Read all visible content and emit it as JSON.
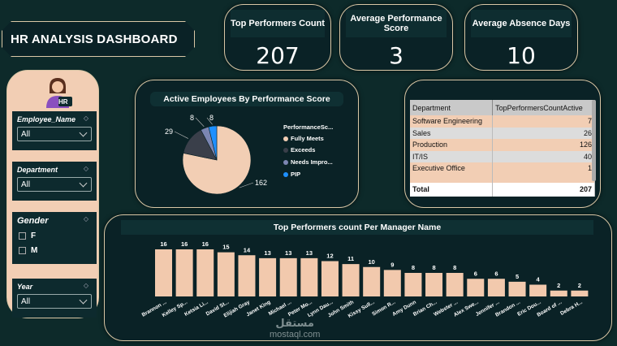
{
  "title": "HR ANALYSIS DASHBOARD",
  "kpis": [
    {
      "label": "Top Performers Count",
      "value": "207"
    },
    {
      "label": "Average Performance Score",
      "value": "3"
    },
    {
      "label": "Average Absence Days",
      "value": "10"
    }
  ],
  "sidebar": {
    "avatar_badge": "HR",
    "employee_name": {
      "label": "Employee_Name",
      "value": "All"
    },
    "department": {
      "label": "Department",
      "value": "All"
    },
    "gender": {
      "label": "Gender",
      "options": [
        "F",
        "M"
      ]
    },
    "year": {
      "label": "Year",
      "value": "All"
    }
  },
  "pie": {
    "title": "Active Employees By Performance Score",
    "legend_title": "PerformanceSc...",
    "legend": [
      "Fully Meets",
      "Exceeds",
      "Needs Impro...",
      "PIP"
    ],
    "colors": [
      "#f2ceb4",
      "#3a3f4a",
      "#7c86b2",
      "#1e90ff"
    ]
  },
  "table": {
    "headers": [
      "Department",
      "TopPerformersCountActive"
    ],
    "rows": [
      {
        "dept": "Software Engineering",
        "count": "7"
      },
      {
        "dept": "Sales",
        "count": "26"
      },
      {
        "dept": "Production",
        "count": "126"
      },
      {
        "dept": "IT/IS",
        "count": "40"
      },
      {
        "dept": "Executive Office",
        "count": "1"
      }
    ],
    "total_label": "Total",
    "total_value": "207"
  },
  "bar": {
    "title": "Top Performers count Per Manager Name"
  },
  "watermark": {
    "line1": "مستقل",
    "line2": "mostaql.com"
  },
  "chart_data": [
    {
      "type": "pie",
      "title": "Active Employees By Performance Score",
      "legend_title": "PerformanceSc...",
      "categories": [
        "Fully Meets",
        "Exceeds",
        "Needs Impro...",
        "PIP"
      ],
      "values": [
        162,
        29,
        8,
        8
      ],
      "labels": [
        "162",
        "29",
        "8",
        "8"
      ],
      "legend_position": "right"
    },
    {
      "type": "bar",
      "title": "Top Performers count Per Manager Name",
      "categories": [
        "Brannon ...",
        "Kelley Sp...",
        "Ketsia Li...",
        "David St...",
        "Elijiah Gray",
        "Janet King",
        "Michael ...",
        "Peter Mo...",
        "Lynn Dau...",
        "John Smith",
        "Kissy Sull...",
        "Simon R...",
        "Amy Dunn",
        "Brian Ch...",
        "Webster ...",
        "Alex Swe...",
        "Jennifer ...",
        "Brandon ...",
        "Eric Dou...",
        "Board of ...",
        "Debra H..."
      ],
      "values": [
        16,
        16,
        16,
        15,
        14,
        13,
        13,
        13,
        12,
        11,
        10,
        9,
        8,
        8,
        8,
        6,
        6,
        5,
        4,
        2,
        2
      ],
      "color": "#f2c9ad",
      "xlabel": "",
      "ylabel": ""
    }
  ]
}
